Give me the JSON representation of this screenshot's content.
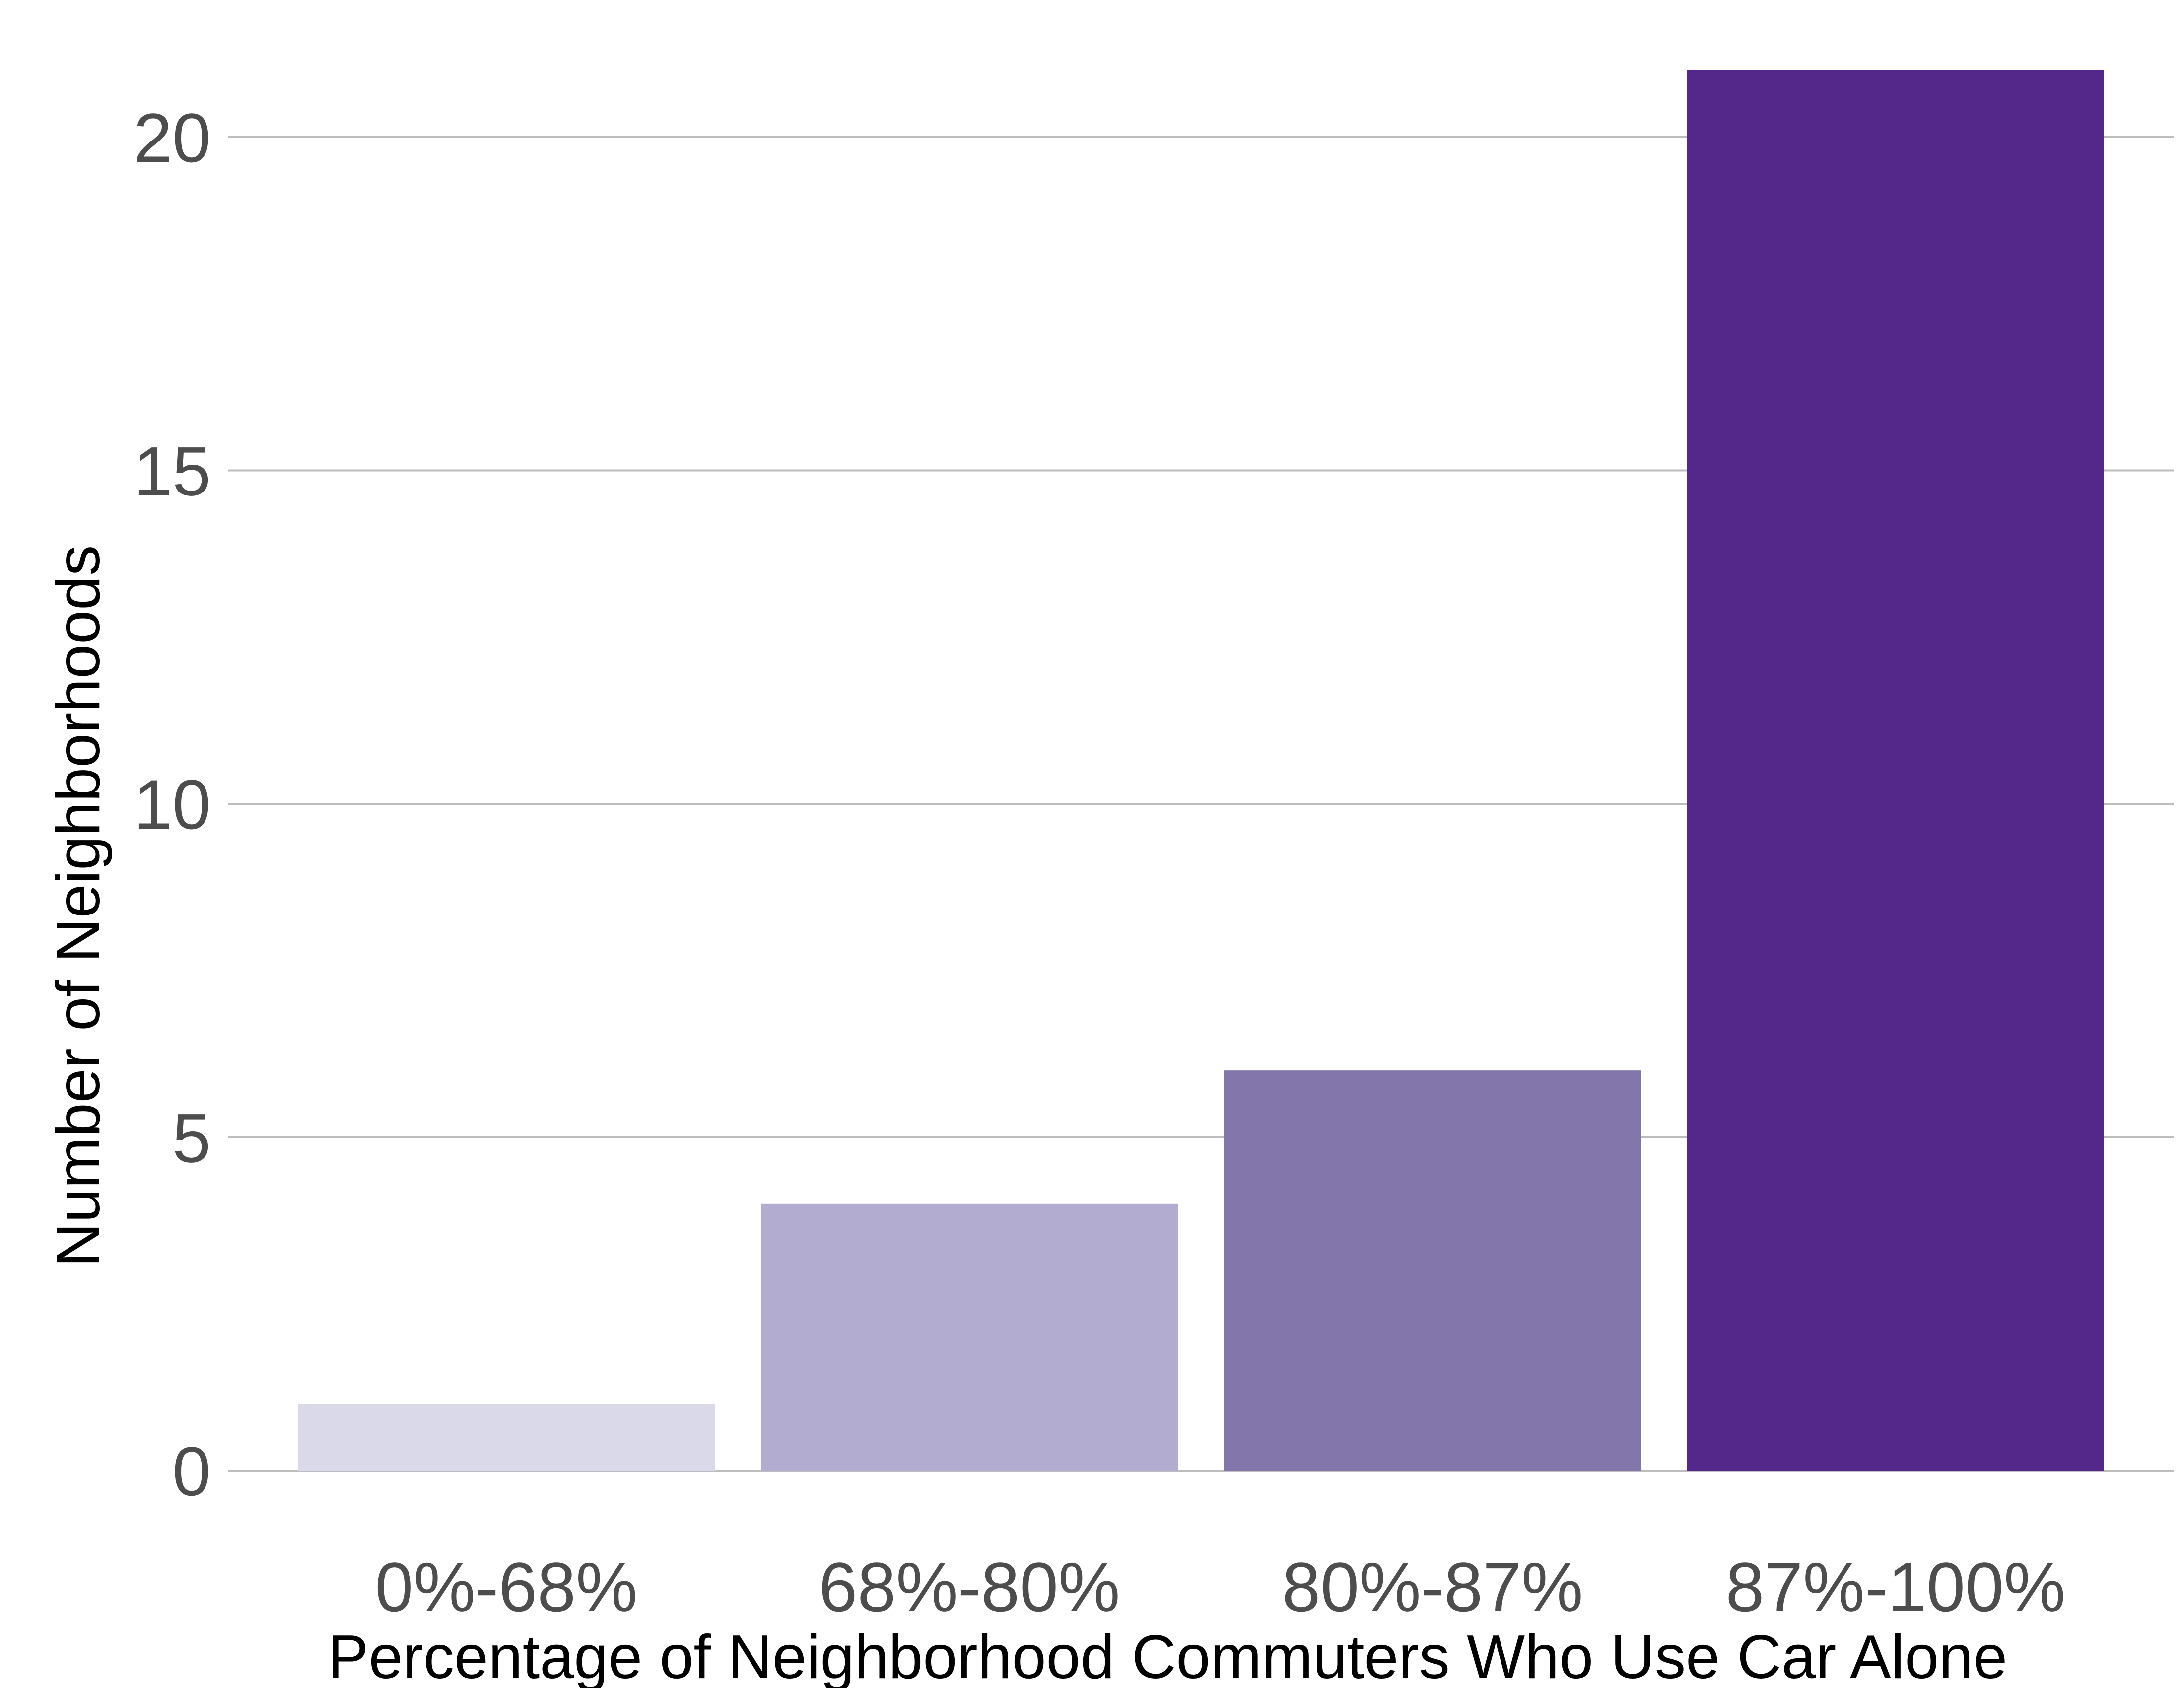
{
  "chart_data": {
    "type": "bar",
    "title": "",
    "xlabel": "Percentage of Neighborhood Commuters Who Use Car Alone",
    "ylabel": "Number of Neighborhoods",
    "categories": [
      "0%-68%",
      "68%-80%",
      "80%-87%",
      "87%-100%"
    ],
    "values": [
      1,
      4,
      6,
      21
    ],
    "ylim": [
      0,
      21
    ],
    "yticks": [
      0,
      5,
      10,
      15,
      20
    ],
    "ytick_labels": [
      "0",
      "5",
      "10",
      "15",
      "20"
    ],
    "grid": "horizontal major",
    "legend": "none",
    "colors": [
      "#d9d9ea",
      "#b2acd1",
      "#8276aa",
      "#54278a"
    ]
  }
}
